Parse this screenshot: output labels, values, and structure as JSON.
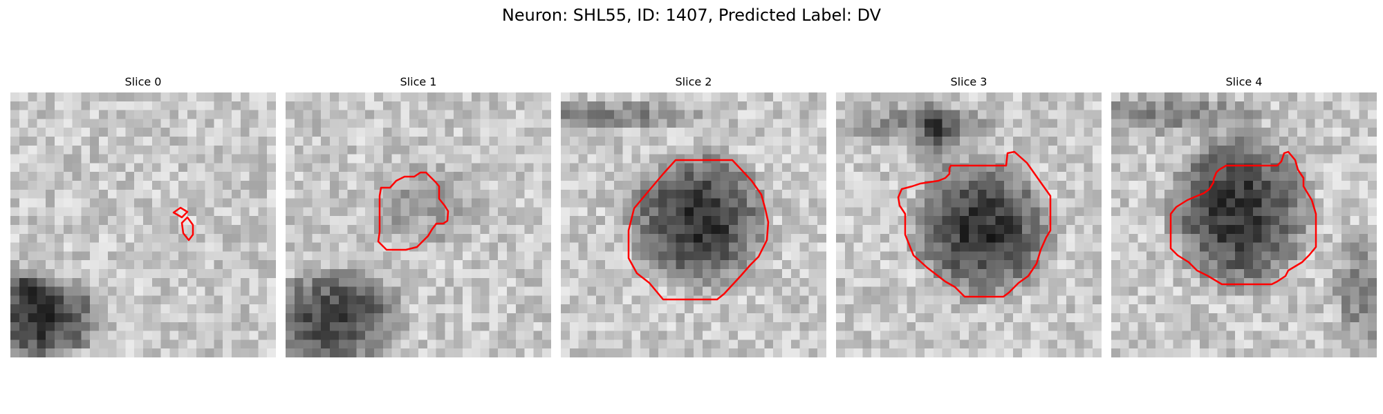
{
  "figure": {
    "title": "Neuron: SHL55, ID: 1407, Predicted Label: DV",
    "contour_color": "#ff0000",
    "colormap": "gray",
    "slices": [
      {
        "title": "Slice 0"
      },
      {
        "title": "Slice 1"
      },
      {
        "title": "Slice 2"
      },
      {
        "title": "Slice 3"
      },
      {
        "title": "Slice 4"
      }
    ]
  }
}
